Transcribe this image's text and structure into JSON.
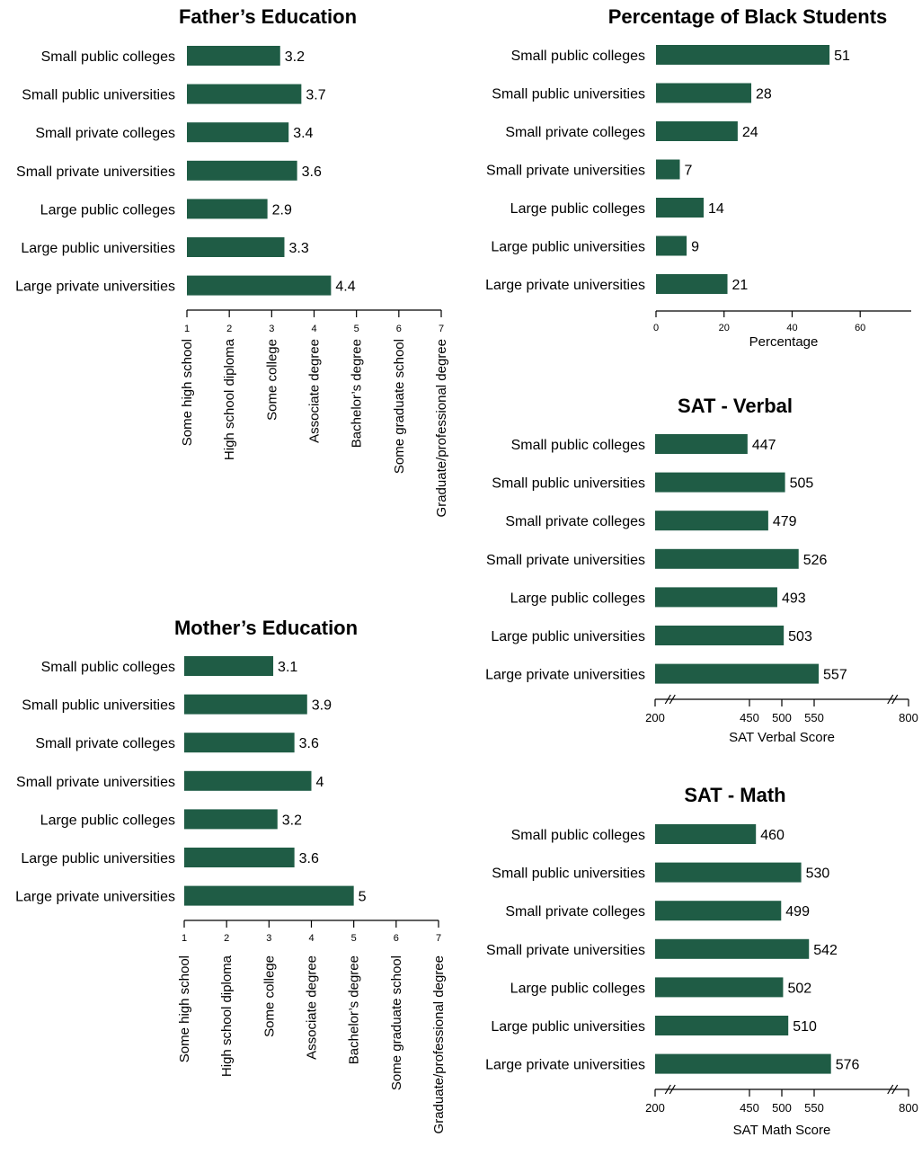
{
  "chart_data": [
    {
      "id": "father",
      "type": "bar",
      "orientation": "horizontal",
      "title": "Father’s Education",
      "categories": [
        "Small public colleges",
        "Small public universities",
        "Small private colleges",
        "Small private universities",
        "Large public colleges",
        "Large public universities",
        "Large private universities"
      ],
      "values": [
        3.2,
        3.7,
        3.4,
        3.6,
        2.9,
        3.3,
        4.4
      ],
      "value_labels": [
        "3.2",
        "3.7",
        "3.4",
        "3.6",
        "2.9",
        "3.3",
        "4.4"
      ],
      "xlim": [
        1,
        7
      ],
      "ticks": [
        1,
        2,
        3,
        4,
        5,
        6,
        7
      ],
      "tick_labels": [
        "1",
        "2",
        "3",
        "4",
        "5",
        "6",
        "7"
      ],
      "scale_labels": [
        "Some high school",
        "High school diploma",
        "Some college",
        "Associate degree",
        "Bachelor’s degree",
        "Some graduate school",
        "Graduate/professional degree"
      ],
      "color": "#1f5c45"
    },
    {
      "id": "mother",
      "type": "bar",
      "orientation": "horizontal",
      "title": "Mother’s Education",
      "categories": [
        "Small public colleges",
        "Small public universities",
        "Small private colleges",
        "Small private universities",
        "Large public colleges",
        "Large public universities",
        "Large private universities"
      ],
      "values": [
        3.1,
        3.9,
        3.6,
        4,
        3.2,
        3.6,
        5
      ],
      "value_labels": [
        "3.1",
        "3.9",
        "3.6",
        "4",
        "3.2",
        "3.6",
        "5"
      ],
      "xlim": [
        1,
        7
      ],
      "ticks": [
        1,
        2,
        3,
        4,
        5,
        6,
        7
      ],
      "tick_labels": [
        "1",
        "2",
        "3",
        "4",
        "5",
        "6",
        "7"
      ],
      "scale_labels": [
        "Some high school",
        "High school diploma",
        "Some college",
        "Associate degree",
        "Bachelor’s degree",
        "Some graduate school",
        "Graduate/professional degree"
      ],
      "color": "#1f5c45"
    },
    {
      "id": "black",
      "type": "bar",
      "orientation": "horizontal",
      "title": "Percentage of Black Students",
      "categories": [
        "Small public colleges",
        "Small public universities",
        "Small private colleges",
        "Small private universities",
        "Large public colleges",
        "Large public universities",
        "Large private universities"
      ],
      "values": [
        51,
        28,
        24,
        7,
        14,
        9,
        21
      ],
      "value_labels": [
        "51",
        "28",
        "24",
        "7",
        "14",
        "9",
        "21"
      ],
      "xlim": [
        0,
        75
      ],
      "ticks": [
        0,
        20,
        40,
        60
      ],
      "tick_labels": [
        "0",
        "20",
        "40",
        "60"
      ],
      "xlabel": "Percentage",
      "color": "#1f5c45"
    },
    {
      "id": "verbal",
      "type": "bar",
      "orientation": "horizontal",
      "title": "SAT - Verbal",
      "categories": [
        "Small public colleges",
        "Small public universities",
        "Small private colleges",
        "Small private universities",
        "Large public colleges",
        "Large public universities",
        "Large private universities"
      ],
      "values": [
        447,
        505,
        479,
        526,
        493,
        503,
        557
      ],
      "value_labels": [
        "447",
        "505",
        "479",
        "526",
        "493",
        "503",
        "557"
      ],
      "xlim": [
        200,
        800
      ],
      "axis_break": [
        250,
        750
      ],
      "ticks": [
        200,
        450,
        500,
        550,
        800
      ],
      "tick_labels": [
        "200",
        "450",
        "500",
        "550",
        "800"
      ],
      "xlabel": "SAT Verbal Score",
      "color": "#1f5c45"
    },
    {
      "id": "math",
      "type": "bar",
      "orientation": "horizontal",
      "title": "SAT - Math",
      "categories": [
        "Small public colleges",
        "Small public universities",
        "Small private colleges",
        "Small private universities",
        "Large public colleges",
        "Large public universities",
        "Large private universities"
      ],
      "values": [
        460,
        530,
        499,
        542,
        502,
        510,
        576
      ],
      "value_labels": [
        "460",
        "530",
        "499",
        "542",
        "502",
        "510",
        "576"
      ],
      "xlim": [
        200,
        800
      ],
      "axis_break": [
        250,
        750
      ],
      "ticks": [
        200,
        450,
        500,
        550,
        800
      ],
      "tick_labels": [
        "200",
        "450",
        "500",
        "550",
        "800"
      ],
      "xlabel": "SAT Math Score",
      "color": "#1f5c45"
    }
  ]
}
